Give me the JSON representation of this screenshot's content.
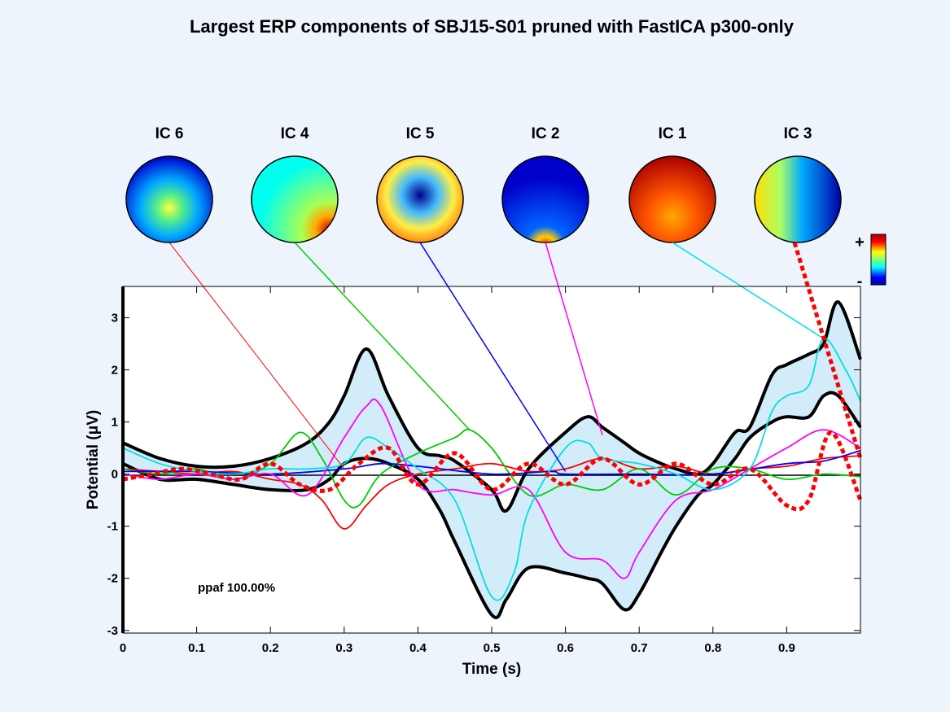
{
  "chart_data": {
    "type": "line",
    "title": "Largest ERP components of SBJ15-S01 pruned with FastICA p300-only",
    "xlabel": "Time (s)",
    "ylabel": "Potential (μV)",
    "xlim": [
      0,
      1
    ],
    "ylim": [
      -3.05,
      3.6
    ],
    "xticks": [
      "0",
      "0.1",
      "0.2",
      "0.3",
      "0.4",
      "0.5",
      "0.6",
      "0.7",
      "0.8",
      "0.9"
    ],
    "yticks": [
      "-3",
      "-2",
      "-1",
      "0",
      "1",
      "2",
      "3"
    ],
    "grid": false,
    "annotation": "ppaf 100.00%",
    "colorbar": {
      "plus": "+",
      "minus": "-"
    },
    "topomaps": [
      {
        "label": "IC 6",
        "pattern": "blue head, yellow posterior spot"
      },
      {
        "label": "IC 4",
        "pattern": "cyan head, red right-posterior"
      },
      {
        "label": "IC 5",
        "pattern": "dark blue central, yellow-red sides"
      },
      {
        "label": "IC 2",
        "pattern": "dark blue head, red occipital"
      },
      {
        "label": "IC 1",
        "pattern": "red frontal, orange head"
      },
      {
        "label": "IC 3",
        "pattern": "yellow left, blue right"
      }
    ],
    "envelope": {
      "x": [
        0,
        0.05,
        0.1,
        0.15,
        0.2,
        0.25,
        0.28,
        0.3,
        0.33,
        0.36,
        0.4,
        0.43,
        0.45,
        0.5,
        0.52,
        0.55,
        0.6,
        0.63,
        0.65,
        0.68,
        0.7,
        0.73,
        0.75,
        0.78,
        0.8,
        0.83,
        0.85,
        0.88,
        0.9,
        0.93,
        0.95,
        0.97,
        1.0
      ],
      "upper": [
        0.6,
        0.3,
        0.15,
        0.15,
        0.3,
        0.6,
        1.0,
        1.5,
        2.4,
        1.5,
        0.5,
        0.35,
        0.25,
        -0.3,
        -0.7,
        0.1,
        0.8,
        1.1,
        0.9,
        0.6,
        0.4,
        0.2,
        0.1,
        0.0,
        0.2,
        0.8,
        0.9,
        1.9,
        2.1,
        2.3,
        2.5,
        3.3,
        2.2
      ],
      "lower": [
        0.2,
        -0.1,
        -0.1,
        -0.2,
        -0.3,
        -0.3,
        -0.1,
        0.2,
        0.3,
        0.2,
        -0.1,
        -0.7,
        -1.3,
        -2.7,
        -2.4,
        -1.8,
        -1.9,
        -2.0,
        -2.1,
        -2.6,
        -2.3,
        -1.5,
        -1.0,
        -0.4,
        -0.2,
        0.3,
        0.7,
        1.0,
        1.1,
        1.1,
        1.5,
        1.5,
        0.9
      ]
    },
    "series": [
      {
        "color": "#ff0000",
        "x": [
          0,
          0.05,
          0.1,
          0.15,
          0.2,
          0.24,
          0.27,
          0.3,
          0.33,
          0.36,
          0.4,
          0.45,
          0.5,
          0.55,
          0.6,
          0.65,
          0.7,
          0.75,
          0.8,
          0.85,
          0.9,
          0.95,
          1.0
        ],
        "y": [
          0.1,
          0.05,
          0.0,
          0.05,
          -0.1,
          -0.2,
          -0.5,
          -1.05,
          -0.6,
          -0.2,
          0.0,
          0.1,
          0.2,
          0.05,
          0.1,
          0.3,
          0.1,
          0.15,
          0.0,
          0.1,
          0.15,
          0.3,
          0.35
        ]
      },
      {
        "color": "#00cc00",
        "x": [
          0,
          0.05,
          0.1,
          0.15,
          0.2,
          0.24,
          0.27,
          0.3,
          0.32,
          0.35,
          0.4,
          0.45,
          0.47,
          0.5,
          0.55,
          0.6,
          0.65,
          0.7,
          0.75,
          0.8,
          0.85,
          0.9,
          0.95,
          1.0
        ],
        "y": [
          0.1,
          0.0,
          0.1,
          -0.1,
          0.2,
          0.8,
          0.3,
          -0.5,
          -0.6,
          0.0,
          0.4,
          0.7,
          0.85,
          0.5,
          -0.4,
          -0.2,
          -0.3,
          0.1,
          -0.4,
          0.1,
          0.1,
          -0.1,
          0.0,
          -0.05
        ]
      },
      {
        "color": "#0000ff",
        "x": [
          0,
          0.1,
          0.2,
          0.3,
          0.35,
          0.4,
          0.5,
          0.58,
          0.6,
          0.7,
          0.8,
          0.9,
          0.95,
          1.0
        ],
        "y": [
          0.05,
          0.05,
          0.0,
          0.1,
          0.2,
          0.15,
          0.0,
          0.05,
          0.0,
          0.0,
          0.0,
          0.2,
          0.25,
          0.45
        ]
      },
      {
        "color": "#ff00ff",
        "x": [
          0,
          0.05,
          0.1,
          0.15,
          0.2,
          0.25,
          0.3,
          0.33,
          0.35,
          0.4,
          0.45,
          0.5,
          0.55,
          0.6,
          0.65,
          0.68,
          0.7,
          0.75,
          0.8,
          0.85,
          0.9,
          0.95,
          1.0
        ],
        "y": [
          0.0,
          -0.1,
          0.0,
          -0.1,
          0.0,
          -0.4,
          0.7,
          1.3,
          1.3,
          -0.2,
          -0.3,
          -0.4,
          -0.3,
          -1.5,
          -1.65,
          -2.0,
          -1.5,
          -0.5,
          -0.3,
          0.1,
          0.5,
          0.85,
          0.5
        ]
      },
      {
        "color": "#00e0e0",
        "x": [
          0,
          0.05,
          0.1,
          0.15,
          0.2,
          0.25,
          0.3,
          0.33,
          0.36,
          0.4,
          0.45,
          0.5,
          0.53,
          0.55,
          0.6,
          0.63,
          0.65,
          0.7,
          0.75,
          0.8,
          0.85,
          0.88,
          0.9,
          0.93,
          0.95,
          0.98,
          1.0
        ],
        "y": [
          0.5,
          0.2,
          0.05,
          0.0,
          0.1,
          0.1,
          0.2,
          0.7,
          0.5,
          0.1,
          -0.5,
          -2.35,
          -1.9,
          -0.7,
          0.5,
          0.6,
          0.3,
          0.2,
          0.0,
          -0.3,
          0.1,
          1.2,
          1.5,
          1.7,
          2.6,
          2.0,
          1.4
        ]
      },
      {
        "color": "#ff0000",
        "dashed": true,
        "x": [
          0,
          0.04,
          0.08,
          0.12,
          0.16,
          0.2,
          0.24,
          0.28,
          0.32,
          0.36,
          0.4,
          0.45,
          0.5,
          0.55,
          0.6,
          0.65,
          0.7,
          0.75,
          0.8,
          0.85,
          0.9,
          0.93,
          0.96,
          1.0
        ],
        "y": [
          -0.1,
          0.0,
          0.1,
          0.0,
          -0.1,
          0.2,
          -0.2,
          -0.3,
          0.2,
          0.5,
          -0.2,
          0.4,
          -0.3,
          0.2,
          -0.2,
          0.3,
          -0.2,
          0.2,
          -0.2,
          0.1,
          -0.6,
          -0.5,
          0.8,
          -0.5
        ]
      }
    ]
  }
}
